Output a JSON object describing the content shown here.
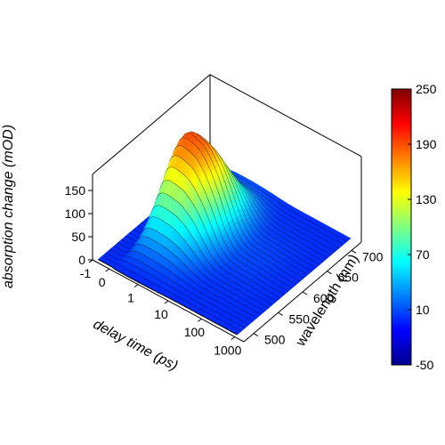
{
  "chart_data": {
    "type": "surface",
    "title": "",
    "xlabel": "delay time (ps)",
    "ylabel": "wavelength (nm)",
    "zlabel": "absorption change (mOD)",
    "x_scale": "log",
    "x_ticks": [
      "-1",
      "0",
      "1",
      "10",
      "100",
      "1000"
    ],
    "y_ticks": [
      "500",
      "550",
      "600",
      "650",
      "700"
    ],
    "z_ticks": [
      "0",
      "50",
      "100",
      "150"
    ],
    "xlim": [
      -1,
      1000
    ],
    "ylim": [
      480,
      720
    ],
    "zlim": [
      -50,
      250
    ],
    "grid": false,
    "colormap": "jet",
    "colorbar": {
      "ticks": [
        "250",
        "190",
        "130",
        "70",
        "10",
        "-50"
      ],
      "range": [
        -50,
        250
      ],
      "stops": [
        "#00008f",
        "#0000ff",
        "#0080ff",
        "#00ffff",
        "#80ff80",
        "#ffff00",
        "#ff8000",
        "#ff0000",
        "#800000"
      ]
    },
    "series_note": "",
    "wavelengths_nm": [
      490,
      500,
      510,
      520,
      530,
      540,
      550,
      560,
      570,
      580,
      590,
      600,
      610,
      620,
      630,
      640,
      650,
      660,
      670,
      680,
      690,
      700,
      710,
      720
    ],
    "delay_ps": [
      -1,
      -0.5,
      0,
      0.3,
      0.6,
      1,
      2,
      3,
      5,
      10,
      20,
      50,
      100,
      300,
      1000
    ],
    "peak_mOD": [
      0,
      5,
      10,
      20,
      35,
      50,
      75,
      100,
      130,
      160,
      185,
      205,
      215,
      210,
      195,
      170,
      140,
      110,
      80,
      55,
      35,
      20,
      12,
      8
    ]
  }
}
